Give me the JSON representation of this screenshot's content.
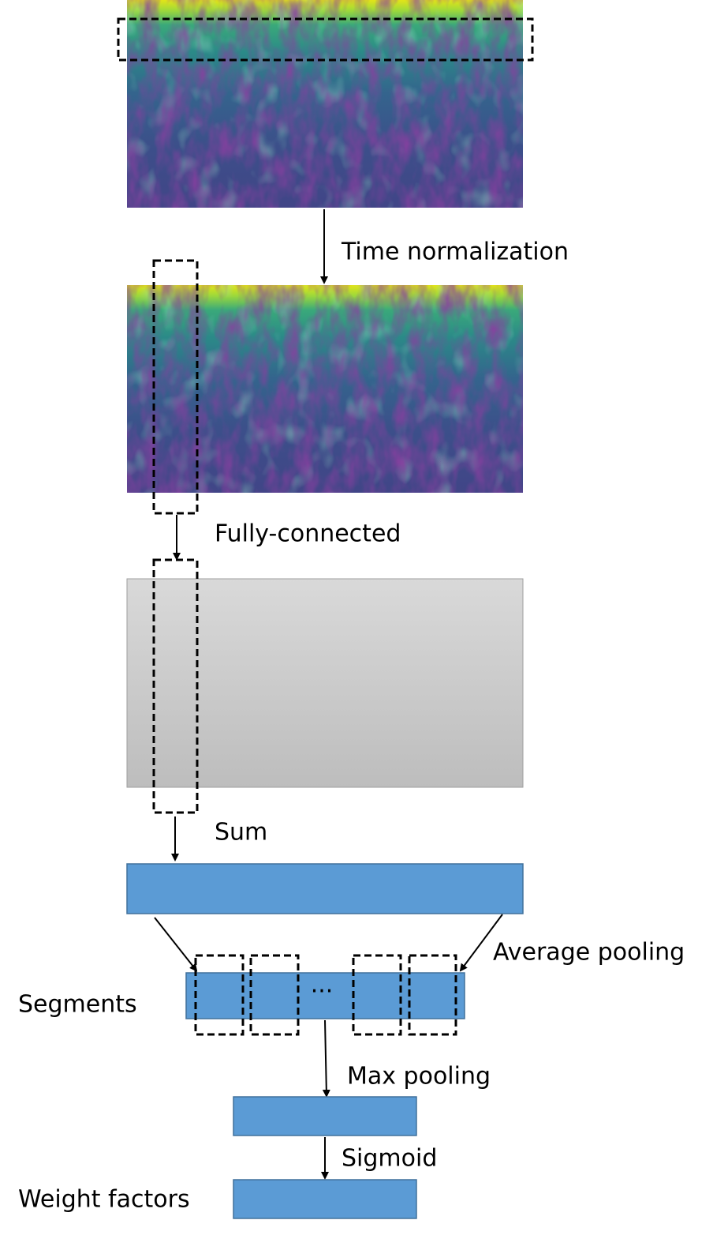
{
  "labels": {
    "time_normalization": "Time normalization",
    "fully_connected": "Fully-connected",
    "sum": "Sum",
    "average_pooling": "Average pooling",
    "segments": "Segments",
    "ellipsis": "...",
    "max_pooling": "Max pooling",
    "sigmoid": "Sigmoid",
    "weight_factors": "Weight factors"
  }
}
